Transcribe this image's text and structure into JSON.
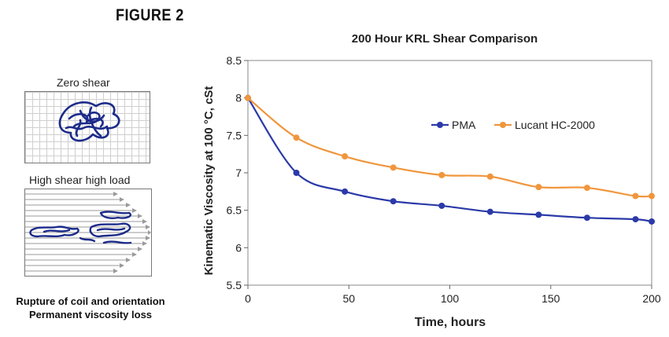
{
  "figure_label": "FIGURE 2",
  "diagram": {
    "zero_shear_label": "Zero shear",
    "high_shear_label": "High shear high load",
    "caption_line1": "Rupture of coil and orientation",
    "caption_line2": "Permanent viscosity loss"
  },
  "chart_data": {
    "type": "line",
    "title": "200 Hour KRL Shear Comparison",
    "xlabel": "Time, hours",
    "ylabel": "Kinematic Viscosity at 100 °C, cSt",
    "xlim": [
      0,
      200
    ],
    "ylim": [
      5.5,
      8.5
    ],
    "xticks": [
      0,
      50,
      100,
      150,
      200
    ],
    "yticks": [
      5.5,
      6,
      6.5,
      7,
      7.5,
      8,
      8.5
    ],
    "legend_position": "upper-right",
    "grid": false,
    "series": [
      {
        "name": "PMA",
        "color": "#2b3aa8",
        "x": [
          0,
          24,
          48,
          72,
          96,
          120,
          144,
          168,
          192,
          200
        ],
        "values": [
          8.0,
          7.0,
          6.75,
          6.62,
          6.56,
          6.48,
          6.44,
          6.4,
          6.38,
          6.35
        ]
      },
      {
        "name": "Lucant HC-2000",
        "color": "#f0963c",
        "x": [
          0,
          24,
          48,
          72,
          96,
          120,
          144,
          168,
          192,
          200
        ],
        "values": [
          8.0,
          7.47,
          7.22,
          7.07,
          6.97,
          6.95,
          6.81,
          6.8,
          6.69,
          6.69
        ]
      }
    ]
  }
}
